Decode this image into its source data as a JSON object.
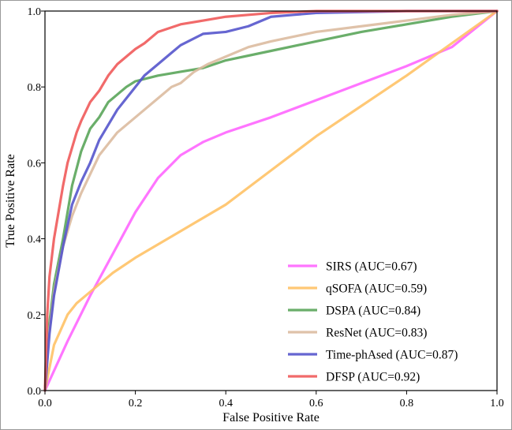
{
  "chart_data": {
    "type": "line",
    "title": "",
    "xlabel": "False Positive Rate",
    "ylabel": "True Positive Rate",
    "xlim": [
      0,
      1
    ],
    "ylim": [
      0,
      1
    ],
    "grid": false,
    "legend_position": "bottom-right",
    "x_ticks": [
      "0.0",
      "0.2",
      "0.4",
      "0.6",
      "0.8",
      "1.0"
    ],
    "y_ticks": [
      "0.0",
      "0.2",
      "0.4",
      "0.6",
      "0.8",
      "1.0"
    ],
    "series": [
      {
        "name": "SIRS (AUC=0.67)",
        "color": "#ff66ff",
        "points": [
          [
            0,
            0
          ],
          [
            0.05,
            0.13
          ],
          [
            0.1,
            0.25
          ],
          [
            0.15,
            0.36
          ],
          [
            0.2,
            0.47
          ],
          [
            0.25,
            0.56
          ],
          [
            0.3,
            0.62
          ],
          [
            0.35,
            0.655
          ],
          [
            0.4,
            0.68
          ],
          [
            0.5,
            0.72
          ],
          [
            0.6,
            0.765
          ],
          [
            0.7,
            0.81
          ],
          [
            0.8,
            0.855
          ],
          [
            0.9,
            0.905
          ],
          [
            1,
            1
          ]
        ]
      },
      {
        "name": "qSOFA (AUC=0.59)",
        "color": "#ffc266",
        "points": [
          [
            0,
            0
          ],
          [
            0.02,
            0.12
          ],
          [
            0.05,
            0.2
          ],
          [
            0.07,
            0.23
          ],
          [
            0.1,
            0.26
          ],
          [
            0.15,
            0.31
          ],
          [
            0.2,
            0.35
          ],
          [
            0.3,
            0.42
          ],
          [
            0.4,
            0.49
          ],
          [
            0.5,
            0.58
          ],
          [
            0.6,
            0.67
          ],
          [
            0.7,
            0.75
          ],
          [
            0.8,
            0.83
          ],
          [
            0.9,
            0.915
          ],
          [
            1,
            1
          ]
        ]
      },
      {
        "name": "DSPA (AUC=0.84)",
        "color": "#5aa55a",
        "points": [
          [
            0,
            0
          ],
          [
            0.01,
            0.18
          ],
          [
            0.02,
            0.28
          ],
          [
            0.04,
            0.4
          ],
          [
            0.06,
            0.54
          ],
          [
            0.08,
            0.63
          ],
          [
            0.1,
            0.69
          ],
          [
            0.12,
            0.72
          ],
          [
            0.14,
            0.76
          ],
          [
            0.16,
            0.78
          ],
          [
            0.18,
            0.8
          ],
          [
            0.2,
            0.815
          ],
          [
            0.25,
            0.83
          ],
          [
            0.3,
            0.84
          ],
          [
            0.35,
            0.85
          ],
          [
            0.4,
            0.87
          ],
          [
            0.5,
            0.895
          ],
          [
            0.6,
            0.92
          ],
          [
            0.7,
            0.945
          ],
          [
            0.8,
            0.965
          ],
          [
            0.9,
            0.985
          ],
          [
            1,
            1
          ]
        ]
      },
      {
        "name": "ResNet (AUC=0.83)",
        "color": "#dcbba0",
        "points": [
          [
            0,
            0
          ],
          [
            0.01,
            0.16
          ],
          [
            0.02,
            0.26
          ],
          [
            0.04,
            0.38
          ],
          [
            0.06,
            0.46
          ],
          [
            0.08,
            0.52
          ],
          [
            0.1,
            0.57
          ],
          [
            0.12,
            0.62
          ],
          [
            0.14,
            0.65
          ],
          [
            0.16,
            0.68
          ],
          [
            0.18,
            0.7
          ],
          [
            0.2,
            0.72
          ],
          [
            0.22,
            0.74
          ],
          [
            0.25,
            0.77
          ],
          [
            0.28,
            0.8
          ],
          [
            0.3,
            0.81
          ],
          [
            0.33,
            0.84
          ],
          [
            0.36,
            0.86
          ],
          [
            0.4,
            0.88
          ],
          [
            0.45,
            0.905
          ],
          [
            0.5,
            0.92
          ],
          [
            0.6,
            0.945
          ],
          [
            0.7,
            0.96
          ],
          [
            0.8,
            0.975
          ],
          [
            0.9,
            0.99
          ],
          [
            1,
            1
          ]
        ]
      },
      {
        "name": "Time-phAsed (AUC=0.87)",
        "color": "#5555cc",
        "points": [
          [
            0,
            0
          ],
          [
            0.01,
            0.15
          ],
          [
            0.02,
            0.25
          ],
          [
            0.04,
            0.38
          ],
          [
            0.06,
            0.49
          ],
          [
            0.08,
            0.55
          ],
          [
            0.1,
            0.6
          ],
          [
            0.12,
            0.66
          ],
          [
            0.14,
            0.7
          ],
          [
            0.16,
            0.74
          ],
          [
            0.18,
            0.77
          ],
          [
            0.2,
            0.8
          ],
          [
            0.22,
            0.83
          ],
          [
            0.25,
            0.86
          ],
          [
            0.28,
            0.89
          ],
          [
            0.3,
            0.91
          ],
          [
            0.35,
            0.94
          ],
          [
            0.4,
            0.945
          ],
          [
            0.45,
            0.96
          ],
          [
            0.5,
            0.985
          ],
          [
            0.55,
            0.99
          ],
          [
            0.6,
            0.995
          ],
          [
            0.8,
            1.0
          ],
          [
            1,
            1
          ]
        ]
      },
      {
        "name": "DFSP (AUC=0.92)",
        "color": "#f05a5a",
        "points": [
          [
            0,
            0
          ],
          [
            0.005,
            0.2
          ],
          [
            0.01,
            0.3
          ],
          [
            0.02,
            0.4
          ],
          [
            0.03,
            0.47
          ],
          [
            0.04,
            0.54
          ],
          [
            0.05,
            0.6
          ],
          [
            0.06,
            0.64
          ],
          [
            0.07,
            0.68
          ],
          [
            0.08,
            0.71
          ],
          [
            0.1,
            0.76
          ],
          [
            0.12,
            0.79
          ],
          [
            0.14,
            0.83
          ],
          [
            0.16,
            0.86
          ],
          [
            0.18,
            0.88
          ],
          [
            0.2,
            0.9
          ],
          [
            0.22,
            0.915
          ],
          [
            0.25,
            0.945
          ],
          [
            0.3,
            0.965
          ],
          [
            0.35,
            0.975
          ],
          [
            0.4,
            0.985
          ],
          [
            0.45,
            0.99
          ],
          [
            0.5,
            0.995
          ],
          [
            0.6,
            1.0
          ],
          [
            1,
            1
          ]
        ]
      }
    ]
  }
}
